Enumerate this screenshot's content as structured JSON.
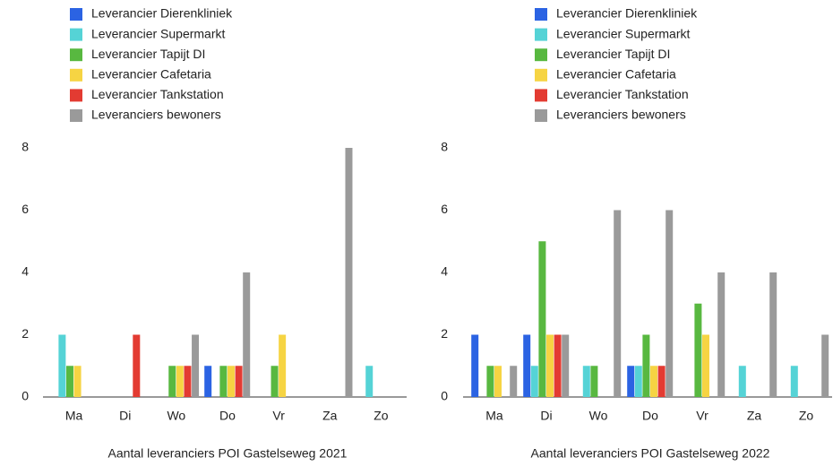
{
  "chart_data": [
    {
      "type": "bar",
      "title": "Aantal leveranciers POI Gastelseweg 2021",
      "categories": [
        "Ma",
        "Di",
        "Wo",
        "Do",
        "Vr",
        "Za",
        "Zo"
      ],
      "series": [
        {
          "name": "Leverancier Dierenkliniek",
          "color": "#2b63e3",
          "values": [
            0,
            0,
            0,
            1,
            0,
            0,
            0
          ]
        },
        {
          "name": "Leverancier Supermarkt",
          "color": "#55d3d6",
          "values": [
            2,
            0,
            0,
            0,
            0,
            0,
            1
          ]
        },
        {
          "name": "Leverancier Tapijt DI",
          "color": "#58b840",
          "values": [
            1,
            0,
            1,
            1,
            1,
            0,
            0
          ]
        },
        {
          "name": "Leverancier Cafetaria",
          "color": "#f6d443",
          "values": [
            1,
            0,
            1,
            1,
            2,
            0,
            0
          ]
        },
        {
          "name": "Leverancier Tankstation",
          "color": "#e33b32",
          "values": [
            0,
            2,
            1,
            1,
            0,
            0,
            0
          ]
        },
        {
          "name": "Leveranciers bewoners",
          "color": "#9a9a9a",
          "values": [
            0,
            0,
            2,
            4,
            0,
            8,
            0
          ]
        }
      ],
      "ylim": [
        0,
        8
      ],
      "yticks": [
        0,
        2,
        4,
        6,
        8
      ],
      "grid": false,
      "legend": "top"
    },
    {
      "type": "bar",
      "title": "Aantal leveranciers POI Gastelseweg 2022",
      "categories": [
        "Ma",
        "Di",
        "Wo",
        "Do",
        "Vr",
        "Za",
        "Zo"
      ],
      "series": [
        {
          "name": "Leverancier Dierenkliniek",
          "color": "#2b63e3",
          "values": [
            2,
            2,
            0,
            1,
            0,
            0,
            0
          ]
        },
        {
          "name": "Leverancier Supermarkt",
          "color": "#55d3d6",
          "values": [
            0,
            1,
            1,
            1,
            0,
            1,
            1
          ]
        },
        {
          "name": "Leverancier Tapijt DI",
          "color": "#58b840",
          "values": [
            1,
            5,
            1,
            2,
            3,
            0,
            0
          ]
        },
        {
          "name": "Leverancier Cafetaria",
          "color": "#f6d443",
          "values": [
            1,
            2,
            0,
            1,
            2,
            0,
            0
          ]
        },
        {
          "name": "Leverancier Tankstation",
          "color": "#e33b32",
          "values": [
            0,
            2,
            0,
            1,
            0,
            0,
            0
          ]
        },
        {
          "name": "Leveranciers bewoners",
          "color": "#9a9a9a",
          "values": [
            1,
            2,
            6,
            6,
            4,
            4,
            2
          ]
        }
      ],
      "ylim": [
        0,
        8
      ],
      "yticks": [
        0,
        2,
        4,
        6,
        8
      ],
      "grid": false,
      "legend": "top"
    }
  ]
}
